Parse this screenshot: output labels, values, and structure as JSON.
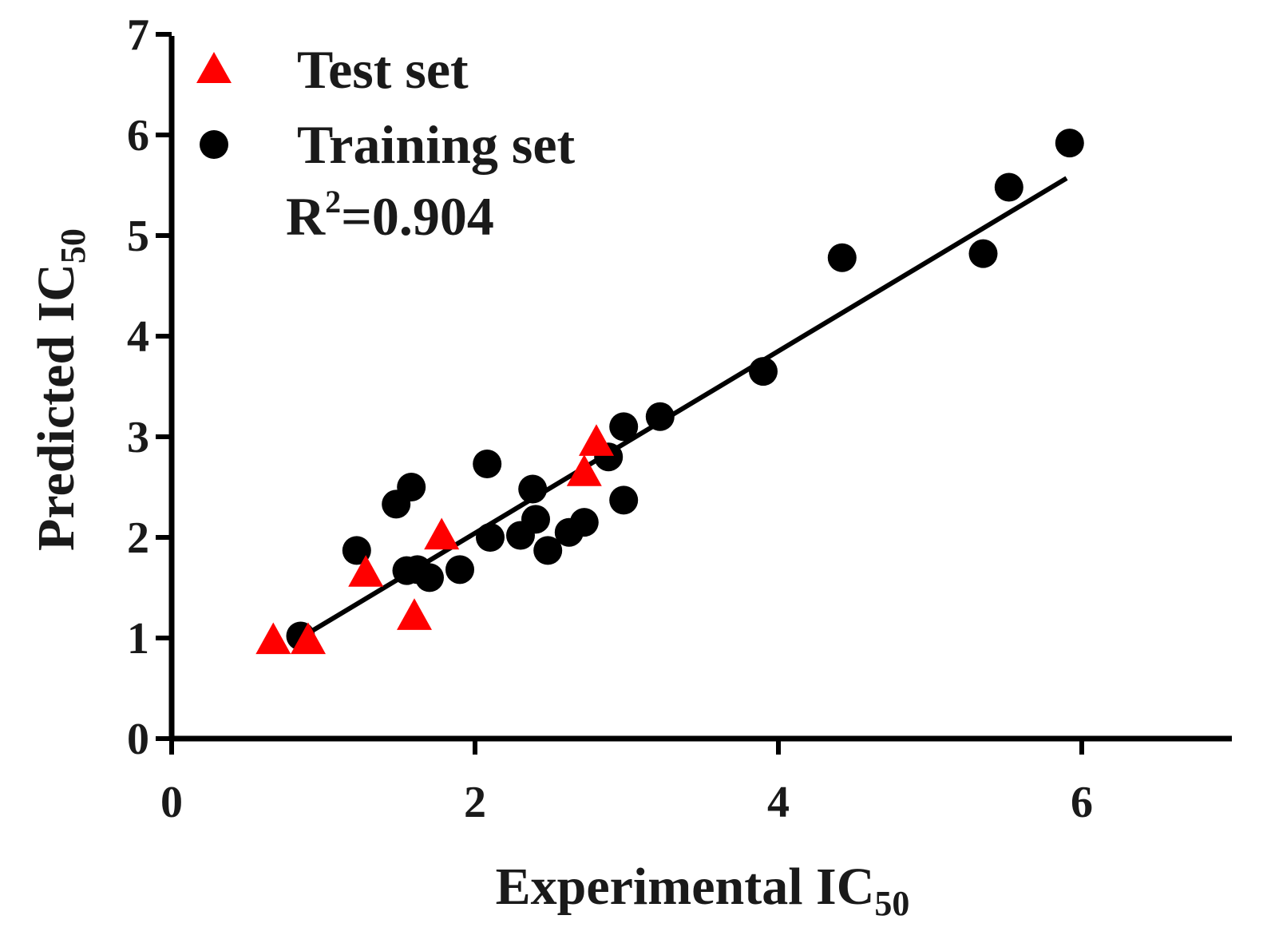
{
  "chart_data": {
    "type": "scatter",
    "title": "",
    "xlabel": "Experimental IC",
    "xlabel_sub": "50",
    "ylabel": "Predicted IC",
    "ylabel_sub": "50",
    "xlim": [
      0,
      7
    ],
    "ylim": [
      0,
      7
    ],
    "xticks": [
      0,
      2,
      4,
      6
    ],
    "yticks": [
      0,
      1,
      2,
      3,
      4,
      5,
      6,
      7
    ],
    "grid": false,
    "legend_position": "top-left",
    "series": [
      {
        "name": "Test set",
        "marker": "triangle",
        "color": "#ff0000",
        "points": [
          [
            0.67,
            0.98
          ],
          [
            0.9,
            0.98
          ],
          [
            1.28,
            1.65
          ],
          [
            1.6,
            1.22
          ],
          [
            1.78,
            2.02
          ],
          [
            2.72,
            2.65
          ],
          [
            2.8,
            2.95
          ]
        ]
      },
      {
        "name": "Training set",
        "marker": "circle",
        "color": "#000000",
        "points": [
          [
            0.85,
            1.02
          ],
          [
            1.22,
            1.87
          ],
          [
            1.48,
            2.33
          ],
          [
            1.58,
            2.5
          ],
          [
            1.55,
            1.67
          ],
          [
            1.62,
            1.68
          ],
          [
            1.7,
            1.6
          ],
          [
            1.9,
            1.68
          ],
          [
            2.08,
            2.73
          ],
          [
            2.1,
            2.0
          ],
          [
            2.3,
            2.02
          ],
          [
            2.38,
            2.48
          ],
          [
            2.4,
            2.18
          ],
          [
            2.48,
            1.87
          ],
          [
            2.62,
            2.05
          ],
          [
            2.72,
            2.15
          ],
          [
            2.88,
            2.8
          ],
          [
            2.98,
            3.1
          ],
          [
            2.98,
            2.37
          ],
          [
            3.22,
            3.2
          ],
          [
            3.9,
            3.65
          ],
          [
            4.42,
            4.78
          ],
          [
            5.35,
            4.82
          ],
          [
            5.52,
            5.48
          ],
          [
            5.92,
            5.92
          ]
        ]
      }
    ],
    "fit_line": {
      "x": [
        0.87,
        5.9
      ],
      "y": [
        1.02,
        5.57
      ]
    },
    "annotation": {
      "prefix": "R",
      "sup": "2",
      "suffix": "=0.904"
    }
  }
}
